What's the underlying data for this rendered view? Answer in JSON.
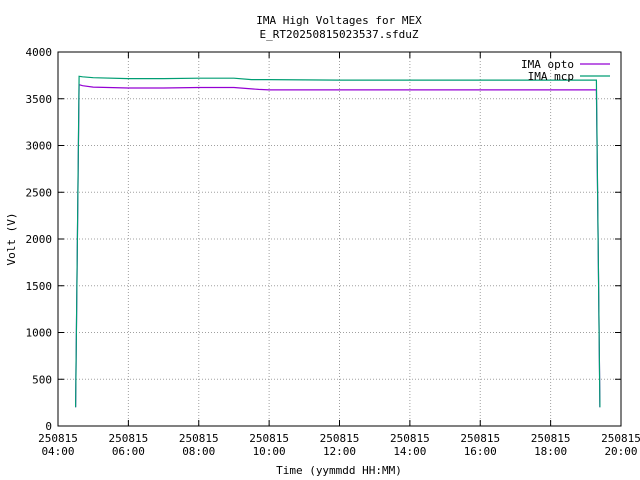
{
  "chart_data": {
    "type": "line",
    "title": "IMA High Voltages for MEX",
    "subtitle": "E_RT20250815023537.sfduZ",
    "xlabel": "Time (yymmdd HH:MM)",
    "ylabel": "Volt (V)",
    "xlim": [
      "2025-08-15 04:00",
      "2025-08-15 20:00"
    ],
    "ylim": [
      0,
      4000
    ],
    "x_ticks": [
      {
        "date": "250815",
        "time": "04:00",
        "hour": 4
      },
      {
        "date": "250815",
        "time": "06:00",
        "hour": 6
      },
      {
        "date": "250815",
        "time": "08:00",
        "hour": 8
      },
      {
        "date": "250815",
        "time": "10:00",
        "hour": 10
      },
      {
        "date": "250815",
        "time": "12:00",
        "hour": 12
      },
      {
        "date": "250815",
        "time": "14:00",
        "hour": 14
      },
      {
        "date": "250815",
        "time": "16:00",
        "hour": 16
      },
      {
        "date": "250815",
        "time": "18:00",
        "hour": 18
      },
      {
        "date": "250815",
        "time": "20:00",
        "hour": 20
      }
    ],
    "y_ticks": [
      0,
      500,
      1000,
      1500,
      2000,
      2500,
      3000,
      3500,
      4000
    ],
    "grid": true,
    "legend": "top-right",
    "series": [
      {
        "name": "IMA opto",
        "color": "#9400d3",
        "x": [
          4.5,
          4.55,
          4.6,
          4.7,
          5.0,
          6.0,
          7.0,
          8.0,
          9.0,
          9.7,
          10.0,
          12.0,
          14.0,
          16.0,
          18.0,
          19.2,
          19.3,
          19.35,
          19.4
        ],
        "y": [
          200,
          2000,
          3650,
          3640,
          3625,
          3615,
          3615,
          3620,
          3620,
          3600,
          3595,
          3595,
          3595,
          3595,
          3595,
          3595,
          3595,
          2000,
          200
        ]
      },
      {
        "name": "IMA mcp",
        "color": "#009e73",
        "x": [
          4.5,
          4.55,
          4.6,
          4.7,
          5.0,
          6.0,
          7.0,
          8.0,
          9.0,
          9.5,
          10.0,
          12.0,
          14.0,
          16.0,
          18.0,
          19.2,
          19.3,
          19.35,
          19.4
        ],
        "y": [
          200,
          2000,
          3740,
          3735,
          3725,
          3715,
          3715,
          3720,
          3720,
          3705,
          3705,
          3700,
          3700,
          3700,
          3700,
          3700,
          3700,
          2000,
          200
        ]
      }
    ]
  }
}
